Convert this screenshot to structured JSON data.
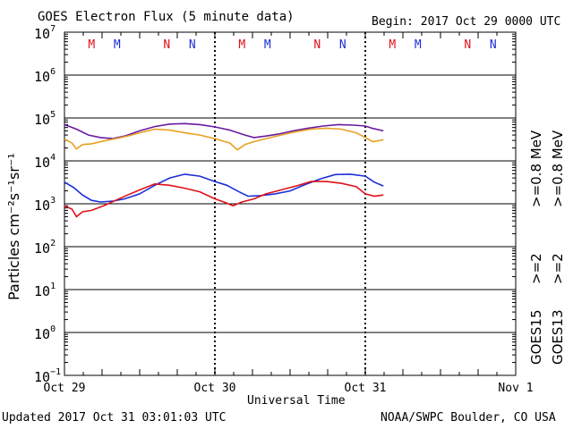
{
  "chart_data": {
    "type": "line",
    "title": "GOES Electron Flux (5 minute data)",
    "begin_label": "Begin: 2017 Oct 29 0000 UTC",
    "xlabel": "Universal Time",
    "ylabel": "Particles cm⁻²s⁻¹sr⁻¹",
    "x_unit": "days since 2017 Oct 29 0000 UTC",
    "xlim": [
      0,
      3
    ],
    "ylim_log10": [
      -1,
      7
    ],
    "x_ticks": [
      {
        "x": 0,
        "label": "Oct 29"
      },
      {
        "x": 1,
        "label": "Oct 30"
      },
      {
        "x": 2,
        "label": "Oct 31"
      },
      {
        "x": 3,
        "label": "Nov 1"
      }
    ],
    "y_ticks": [
      {
        "exp": 7,
        "label": "7"
      },
      {
        "exp": 6,
        "label": "6"
      },
      {
        "exp": 5,
        "label": "5"
      },
      {
        "exp": 4,
        "label": "4"
      },
      {
        "exp": 3,
        "label": "3"
      },
      {
        "exp": 2,
        "label": "2"
      },
      {
        "exp": 1,
        "label": "1"
      },
      {
        "exp": 0,
        "label": "0"
      },
      {
        "exp": -1,
        "label": "−1"
      }
    ],
    "y_tick_base": "10",
    "threshold": {
      "value": 1000,
      "style": "dashed"
    },
    "markers": [
      {
        "x": 0.18,
        "label": "M",
        "color": "#e0101a"
      },
      {
        "x": 0.35,
        "label": "M",
        "color": "#1a2ed6"
      },
      {
        "x": 0.68,
        "label": "N",
        "color": "#e0101a"
      },
      {
        "x": 0.85,
        "label": "N",
        "color": "#1a2ed6"
      },
      {
        "x": 1.18,
        "label": "M",
        "color": "#e0101a"
      },
      {
        "x": 1.35,
        "label": "M",
        "color": "#1a2ed6"
      },
      {
        "x": 1.68,
        "label": "N",
        "color": "#e0101a"
      },
      {
        "x": 1.85,
        "label": "N",
        "color": "#1a2ed6"
      },
      {
        "x": 2.18,
        "label": "M",
        "color": "#e0101a"
      },
      {
        "x": 2.35,
        "label": "M",
        "color": "#1a2ed6"
      },
      {
        "x": 2.68,
        "label": "N",
        "color": "#e0101a"
      },
      {
        "x": 2.85,
        "label": "N",
        "color": "#1a2ed6"
      }
    ],
    "series": [
      {
        "name": "GOES15 >=0.8 MeV",
        "color": "#6a1aa0",
        "x": [
          0,
          0.08,
          0.16,
          0.24,
          0.32,
          0.4,
          0.5,
          0.6,
          0.7,
          0.8,
          0.9,
          1.0,
          1.1,
          1.2,
          1.26,
          1.34,
          1.42,
          1.52,
          1.62,
          1.72,
          1.82,
          1.92,
          2.0,
          2.05,
          2.12
        ],
        "values": [
          70000,
          55000,
          40000,
          35000,
          33000,
          38000,
          50000,
          63000,
          72000,
          74000,
          70000,
          62000,
          52000,
          40000,
          35000,
          38000,
          42000,
          50000,
          58000,
          65000,
          70000,
          68000,
          65000,
          57000,
          50000
        ]
      },
      {
        "name": "GOES13 >=0.8 MeV",
        "color": "#e8a020",
        "x": [
          0,
          0.05,
          0.08,
          0.12,
          0.18,
          0.26,
          0.34,
          0.42,
          0.5,
          0.6,
          0.7,
          0.8,
          0.9,
          1.0,
          1.1,
          1.15,
          1.2,
          1.26,
          1.34,
          1.44,
          1.54,
          1.64,
          1.74,
          1.84,
          1.94,
          2.0,
          2.05,
          2.12
        ],
        "values": [
          32000,
          26000,
          19000,
          24000,
          25000,
          29000,
          33000,
          38000,
          45000,
          55000,
          52000,
          45000,
          40000,
          33000,
          26000,
          18000,
          24000,
          28000,
          33000,
          40000,
          48000,
          55000,
          58000,
          55000,
          45000,
          35000,
          28000,
          31000
        ]
      },
      {
        "name": "GOES15 >=2 MeV",
        "color": "#1a2ed6",
        "x": [
          0,
          0.06,
          0.12,
          0.18,
          0.24,
          0.32,
          0.4,
          0.5,
          0.6,
          0.7,
          0.8,
          0.9,
          1.0,
          1.08,
          1.16,
          1.22,
          1.3,
          1.4,
          1.5,
          1.6,
          1.7,
          1.8,
          1.9,
          2.0,
          2.06,
          2.12
        ],
        "values": [
          3200,
          2400,
          1600,
          1200,
          1100,
          1150,
          1300,
          1700,
          2700,
          4000,
          4900,
          4400,
          3300,
          2700,
          1900,
          1500,
          1550,
          1700,
          2000,
          2800,
          3800,
          4800,
          4900,
          4400,
          3200,
          2600
        ]
      },
      {
        "name": "GOES13 >=2 MeV",
        "color": "#e0101a",
        "x": [
          0,
          0.05,
          0.08,
          0.12,
          0.18,
          0.26,
          0.34,
          0.42,
          0.5,
          0.6,
          0.7,
          0.8,
          0.9,
          1.0,
          1.06,
          1.12,
          1.18,
          1.26,
          1.34,
          1.44,
          1.54,
          1.64,
          1.74,
          1.84,
          1.94,
          2.0,
          2.06,
          2.12
        ],
        "values": [
          900,
          750,
          500,
          650,
          700,
          900,
          1200,
          1600,
          2100,
          2900,
          2700,
          2300,
          1900,
          1300,
          1100,
          900,
          1100,
          1300,
          1700,
          2100,
          2600,
          3300,
          3300,
          3000,
          2500,
          1700,
          1500,
          1600
        ]
      }
    ],
    "legend": [
      {
        "label": ">=0.8  MeV",
        "color": "#e8a020"
      },
      {
        "label": ">=0.8  MeV",
        "color": "#6a1aa0"
      },
      {
        "label": ">=2",
        "color": "#e0101a"
      },
      {
        "label": ">=2",
        "color": "#1a2ed6"
      },
      {
        "label": "GOES13",
        "color": "#000000"
      },
      {
        "label": "GOES15",
        "color": "#000000"
      }
    ]
  },
  "footer": {
    "updated": "Updated 2017 Oct 31 03:01:03 UTC",
    "source": "NOAA/SWPC Boulder, CO USA"
  }
}
